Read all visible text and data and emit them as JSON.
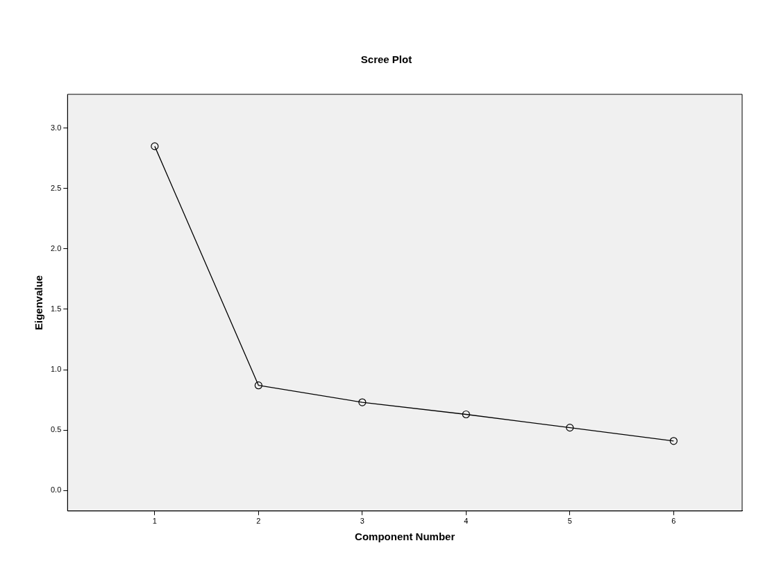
{
  "chart_data": {
    "type": "line",
    "title": "Scree Plot",
    "xlabel": "Component Number",
    "ylabel": "Eigenvalue",
    "x": [
      1,
      2,
      3,
      4,
      5,
      6
    ],
    "series": [
      {
        "color": "#000000",
        "values": [
          2.85,
          0.87,
          0.73,
          0.63,
          0.52,
          0.41
        ]
      }
    ],
    "xlim": [
      0.16,
      6.66
    ],
    "xticks": [
      1,
      2,
      3,
      4,
      5,
      6
    ],
    "ylim": [
      -0.17,
      3.28
    ],
    "yticks": [
      {
        "value": 0,
        "label": "0.0"
      },
      {
        "value": 0.5,
        "label": "0.5"
      },
      {
        "value": 1,
        "label": "1.0"
      },
      {
        "value": 1.5,
        "label": "1.5"
      },
      {
        "value": 2,
        "label": "2.0"
      },
      {
        "value": 2.5,
        "label": "2.5"
      },
      {
        "value": 3,
        "label": "3.0"
      }
    ],
    "marker": "circle",
    "line_style": "solid",
    "grid": false,
    "legend": false
  }
}
